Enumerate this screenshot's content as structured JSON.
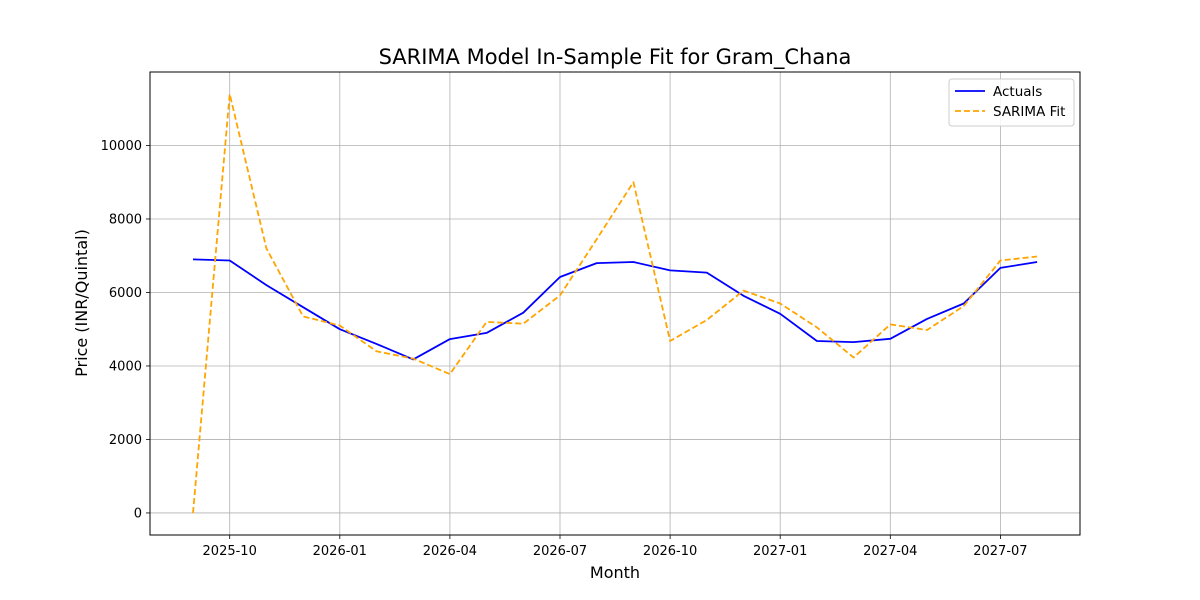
{
  "chart_data": {
    "type": "line",
    "title": "SARIMA Model In-Sample Fit for Gram_Chana",
    "xlabel": "Month",
    "ylabel": "Price (INR/Quintal)",
    "x": [
      "2025-09",
      "2025-10",
      "2025-11",
      "2025-12",
      "2026-01",
      "2026-02",
      "2026-03",
      "2026-04",
      "2026-05",
      "2026-06",
      "2026-07",
      "2026-08",
      "2026-09",
      "2026-10",
      "2026-11",
      "2026-12",
      "2027-01",
      "2027-02",
      "2027-03",
      "2027-04",
      "2027-05",
      "2027-06",
      "2027-07",
      "2027-08"
    ],
    "xticks": [
      "2025-10",
      "2026-01",
      "2026-04",
      "2026-07",
      "2026-10",
      "2027-01",
      "2027-04",
      "2027-07"
    ],
    "ylim": [
      -600,
      12000
    ],
    "yticks": [
      0,
      2000,
      4000,
      6000,
      8000,
      10000
    ],
    "grid": true,
    "legend_position": "top-right",
    "series": [
      {
        "name": "Actuals",
        "color": "#0000ff",
        "style": "solid",
        "values": [
          6900,
          6870,
          6200,
          5600,
          5000,
          4600,
          4180,
          4730,
          4900,
          5450,
          6420,
          6800,
          6830,
          6600,
          6540,
          5910,
          5420,
          4680,
          4650,
          4740,
          5280,
          5700,
          6670,
          6830
        ]
      },
      {
        "name": "SARIMA Fit",
        "color": "#ffa500",
        "style": "dashed",
        "values": [
          0,
          11400,
          7200,
          5350,
          5100,
          4400,
          4200,
          3780,
          5200,
          5150,
          5920,
          7450,
          9000,
          4680,
          5250,
          6050,
          5700,
          5050,
          4230,
          5130,
          4980,
          5630,
          6870,
          6980
        ]
      }
    ]
  }
}
